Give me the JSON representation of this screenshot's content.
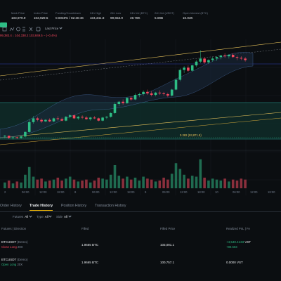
{
  "stats": [
    {
      "label": "Mark Price",
      "value": "103,979.9"
    },
    {
      "label": "Index Price",
      "value": "103,929.5"
    },
    {
      "label": "Funding/Countdown",
      "value": "0.0048% / 02:30:46"
    },
    {
      "label": "24h High",
      "value": "104,341.8"
    },
    {
      "label": "24h Low",
      "value": "99,653.9"
    },
    {
      "label": "24h Vol (BTC)",
      "value": "49.78K"
    },
    {
      "label": "24h Vol (USDT)",
      "value": "5.08B"
    },
    {
      "label": "Open Interest (BTC)",
      "value": "10.03K"
    }
  ],
  "toolbar": {
    "price_type": "Last Price"
  },
  "ohlc": "99,383.4 ↓ 104,338.2 103,849.5 − (−0.4%)",
  "chart_data": {
    "type": "candlestick",
    "fib_label": "0.382 (93,871.8)",
    "x_ticks": [
      "2",
      "06:00",
      "12:00",
      "18:00",
      "8",
      "06:00",
      "12:00",
      "18:00",
      "9",
      "06:00",
      "12:00",
      "18:00",
      "10",
      "06:00",
      "12:00",
      "18:00"
    ],
    "candles": [
      [
        92.9,
        93.1,
        92.7,
        93.0
      ],
      [
        93.0,
        93.0,
        92.6,
        92.7
      ],
      [
        92.7,
        92.9,
        92.5,
        92.8
      ],
      [
        92.8,
        92.9,
        92.6,
        92.7
      ],
      [
        92.7,
        93.0,
        92.6,
        92.9
      ],
      [
        92.9,
        93.6,
        92.8,
        93.5
      ],
      [
        93.5,
        95.2,
        93.4,
        94.8
      ],
      [
        94.8,
        95.6,
        94.6,
        95.3
      ],
      [
        95.3,
        95.5,
        94.9,
        95.1
      ],
      [
        95.1,
        95.3,
        94.7,
        94.9
      ],
      [
        94.9,
        95.2,
        94.8,
        95.1
      ],
      [
        95.1,
        95.3,
        94.8,
        94.9
      ],
      [
        94.9,
        95.4,
        94.8,
        95.3
      ],
      [
        95.3,
        95.6,
        95.0,
        95.2
      ],
      [
        95.2,
        95.4,
        94.9,
        95.0
      ],
      [
        95.0,
        95.6,
        94.9,
        95.5
      ],
      [
        95.5,
        95.9,
        95.3,
        95.7
      ],
      [
        95.7,
        95.8,
        95.2,
        95.3
      ],
      [
        95.3,
        95.6,
        95.1,
        95.5
      ],
      [
        95.5,
        95.7,
        95.2,
        95.4
      ],
      [
        95.4,
        95.6,
        95.1,
        95.2
      ],
      [
        95.2,
        95.5,
        95.0,
        95.4
      ],
      [
        95.4,
        95.6,
        95.2,
        95.3
      ],
      [
        95.3,
        95.4,
        94.9,
        95.0
      ],
      [
        95.0,
        95.5,
        94.9,
        95.4
      ],
      [
        95.4,
        95.6,
        95.2,
        95.5
      ],
      [
        95.5,
        96.1,
        95.4,
        96.0
      ],
      [
        96.0,
        97.4,
        95.9,
        97.2
      ],
      [
        97.2,
        97.6,
        96.9,
        97.5
      ],
      [
        97.5,
        97.8,
        97.1,
        97.3
      ],
      [
        97.3,
        98.1,
        97.2,
        98.0
      ],
      [
        98.0,
        98.2,
        97.6,
        97.8
      ],
      [
        97.8,
        98.6,
        97.7,
        98.4
      ],
      [
        98.4,
        98.7,
        98.1,
        98.5
      ],
      [
        98.5,
        99.0,
        98.3,
        98.8
      ],
      [
        98.8,
        99.1,
        98.4,
        98.6
      ],
      [
        98.6,
        98.9,
        98.2,
        98.4
      ],
      [
        98.4,
        98.8,
        98.2,
        98.7
      ],
      [
        98.7,
        99.0,
        98.4,
        98.6
      ],
      [
        98.6,
        98.8,
        98.3,
        98.5
      ],
      [
        98.5,
        98.7,
        98.1,
        98.3
      ],
      [
        98.3,
        99.2,
        98.2,
        99.1
      ],
      [
        99.1,
        100.6,
        99.0,
        100.4
      ],
      [
        100.4,
        101.9,
        100.2,
        101.7
      ],
      [
        101.7,
        102.2,
        101.3,
        102.0
      ],
      [
        102.0,
        102.3,
        101.4,
        101.6
      ],
      [
        101.6,
        102.4,
        101.5,
        102.3
      ],
      [
        102.3,
        103.0,
        102.1,
        102.8
      ],
      [
        102.8,
        104.3,
        102.6,
        103.2
      ],
      [
        103.2,
        103.4,
        102.5,
        102.7
      ],
      [
        102.7,
        103.1,
        102.5,
        103.0
      ],
      [
        103.0,
        103.4,
        102.8,
        103.2
      ],
      [
        103.2,
        103.5,
        102.9,
        103.4
      ],
      [
        103.4,
        103.7,
        103.1,
        103.6
      ],
      [
        103.6,
        103.9,
        103.3,
        103.5
      ],
      [
        103.5,
        103.8,
        103.2,
        103.7
      ],
      [
        103.7,
        103.9,
        103.3,
        103.4
      ],
      [
        103.4,
        103.6,
        103.0,
        103.3
      ],
      [
        103.3,
        103.5,
        103.0,
        103.2
      ],
      [
        103.2,
        103.4,
        102.8,
        103.0
      ]
    ],
    "volumes": [
      6,
      8,
      5,
      7,
      6,
      14,
      22,
      12,
      9,
      10,
      7,
      8,
      9,
      11,
      8,
      10,
      12,
      9,
      7,
      8,
      9,
      6,
      8,
      11,
      10,
      9,
      14,
      24,
      13,
      10,
      12,
      9,
      11,
      8,
      12,
      10,
      9,
      7,
      8,
      11,
      9,
      15,
      26,
      20,
      14,
      10,
      13,
      12,
      30,
      11,
      8,
      10,
      9,
      8,
      10,
      7,
      9,
      8,
      10,
      9
    ]
  },
  "tabs": [
    "Order History",
    "Trade History",
    "Position History",
    "Transaction History"
  ],
  "filters": [
    {
      "label": "Futures",
      "value": "All"
    },
    {
      "label": "Type",
      "value": "All"
    },
    {
      "label": "Side",
      "value": "All"
    }
  ],
  "table": {
    "headers": [
      "Futures | Direction",
      "Filled",
      "Filled Price",
      "Realized PnL | Fe"
    ],
    "rows": [
      {
        "symbol": "BTCUSDT",
        "mode": "Demo",
        "direction": "Close Long",
        "leverage": "20X",
        "filled": "1.9665",
        "filled_unit": "BTC",
        "price": "103,081.1",
        "pnl": "+4,540.4133",
        "pnl_unit": "VST",
        "pnl_sub": "+80.603"
      },
      {
        "symbol": "BTCUSDT",
        "mode": "Demo",
        "direction": "Open Long",
        "leverage": "20X",
        "filled": "1.9665",
        "filled_unit": "BTC",
        "price": "100,757.1",
        "pnl": "0.0000",
        "pnl_unit": "VST",
        "pnl_sub": ""
      }
    ]
  }
}
